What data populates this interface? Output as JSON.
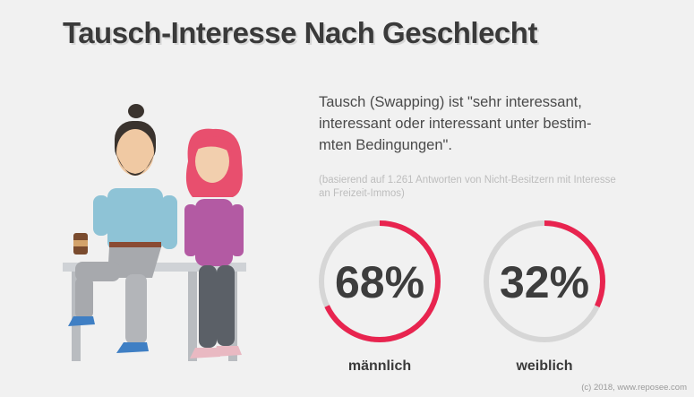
{
  "title": "Tausch-Interesse Nach Geschlecht",
  "description": "Tausch (Swapping) ist \"sehr interessant, interessant oder interessant unter bestim-mten Bedingungen\".",
  "note": "(basierend auf 1.261 Antworten von Nicht-Besitzern mit Interesse an Freizeit-Immos)",
  "credit": "(c) 2018, www.reposee.com",
  "colors": {
    "accent": "#e8244f",
    "track": "#d6d6d6",
    "text": "#3a3a3a"
  },
  "chart_data": {
    "type": "pie",
    "categories": [
      "männlich",
      "weiblich"
    ],
    "values": [
      68,
      32
    ],
    "value_labels": [
      "68%",
      "32%"
    ],
    "title": "Tausch-Interesse Nach Geschlecht"
  }
}
